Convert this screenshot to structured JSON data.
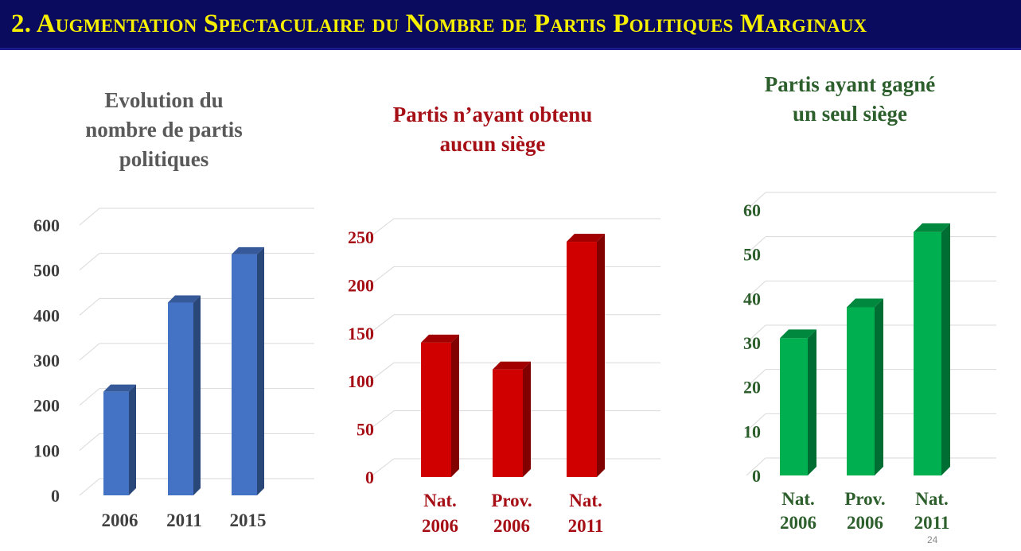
{
  "slide": {
    "title": "2. Augmentation Spectaculaire du Nombre de Partis Politiques Marginaux",
    "page_number": "24",
    "title_bar_color": "#0a0a5e",
    "title_text_color": "#f6f000"
  },
  "chart_data": [
    {
      "type": "bar",
      "title": "Evolution du nombre de partis politiques",
      "title_lines": [
        "Evolution du",
        "nombre de partis",
        "politiques"
      ],
      "categories": [
        "2006",
        "2011",
        "2015"
      ],
      "category_lines": [
        [
          "2006"
        ],
        [
          "2011"
        ],
        [
          "2015"
        ]
      ],
      "values": [
        230,
        428,
        535
      ],
      "ylim": [
        0,
        600
      ],
      "yticks": [
        0,
        100,
        200,
        300,
        400,
        500,
        600
      ],
      "grid": true,
      "color": "#4472c4",
      "title_color": "#595959",
      "label_color": "#404040"
    },
    {
      "type": "bar",
      "title": "Partis n’ayant obtenu aucun siège",
      "title_lines": [
        "Partis n’ayant obtenu",
        "aucun siège"
      ],
      "categories": [
        "Nat. 2006",
        "Prov. 2006",
        "Nat. 2011"
      ],
      "category_lines": [
        [
          "Nat.",
          "2006"
        ],
        [
          "Prov.",
          "2006"
        ],
        [
          "Nat.",
          "2011"
        ]
      ],
      "values": [
        140,
        112,
        245
      ],
      "ylim": [
        0,
        250
      ],
      "yticks": [
        0,
        50,
        100,
        150,
        200,
        250
      ],
      "grid": true,
      "color": "#d00000",
      "title_color": "#a50f15",
      "label_color": "#a50f15"
    },
    {
      "type": "bar",
      "title": "Partis ayant gagné un seul siège",
      "title_lines": [
        "Partis ayant gagné",
        "un seul siège"
      ],
      "categories": [
        "Nat. 2006",
        "Prov. 2006",
        "Nat. 2011"
      ],
      "category_lines": [
        [
          "Nat.",
          "2006"
        ],
        [
          "Prov.",
          "2006"
        ],
        [
          "Nat.",
          "2011"
        ]
      ],
      "values": [
        31,
        38,
        55
      ],
      "ylim": [
        0,
        60
      ],
      "yticks": [
        0,
        10,
        20,
        30,
        40,
        50,
        60
      ],
      "grid": true,
      "color": "#00b050",
      "title_color": "#2d5f2d",
      "label_color": "#2d5f2d"
    }
  ]
}
